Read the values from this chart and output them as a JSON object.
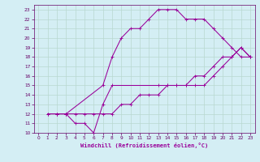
{
  "title": "",
  "xlabel": "Windchill (Refroidissement éolien,°C)",
  "ylabel": "",
  "bg_color": "#d4eef4",
  "grid_color": "#b8d8d0",
  "line_color": "#990099",
  "tick_color": "#660066",
  "xlim": [
    -0.5,
    23.5
  ],
  "ylim": [
    10,
    23.5
  ],
  "xticks": [
    0,
    1,
    2,
    3,
    4,
    5,
    6,
    7,
    8,
    9,
    10,
    11,
    12,
    13,
    14,
    15,
    16,
    17,
    18,
    19,
    20,
    21,
    22,
    23
  ],
  "yticks": [
    10,
    11,
    12,
    13,
    14,
    15,
    16,
    17,
    18,
    19,
    20,
    21,
    22,
    23
  ],
  "curve1_x": [
    1,
    2,
    3,
    7,
    8,
    9,
    10,
    11,
    12,
    13,
    14,
    15,
    16,
    17,
    18,
    19,
    20,
    21,
    22,
    23
  ],
  "curve1_y": [
    12,
    12,
    12,
    15,
    18,
    20,
    21,
    21,
    22,
    23,
    23,
    23,
    22,
    22,
    22,
    21,
    20,
    19,
    18,
    18
  ],
  "curve2_x": [
    2,
    3,
    4,
    5,
    6,
    7,
    8,
    13,
    14,
    15,
    16,
    17,
    18,
    19,
    20,
    21,
    22,
    23
  ],
  "curve2_y": [
    12,
    12,
    11,
    11,
    10,
    13,
    15,
    15,
    15,
    15,
    15,
    15,
    15,
    16,
    17,
    18,
    19,
    18
  ],
  "curve3_x": [
    1,
    2,
    3,
    4,
    5,
    6,
    7,
    8,
    9,
    10,
    11,
    12,
    13,
    14,
    15,
    16,
    17,
    18,
    19,
    20,
    21,
    22,
    23
  ],
  "curve3_y": [
    12,
    12,
    12,
    12,
    12,
    12,
    12,
    12,
    13,
    13,
    14,
    14,
    14,
    15,
    15,
    15,
    16,
    16,
    17,
    18,
    18,
    19,
    18
  ],
  "xlabel_fontsize": 5.0,
  "tick_fontsize": 4.2,
  "marker_size": 2.5,
  "line_width": 0.75
}
